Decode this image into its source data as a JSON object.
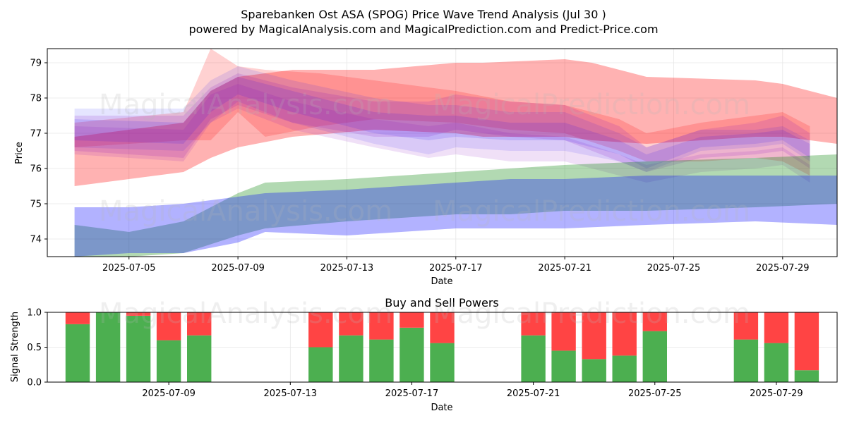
{
  "title_line1": "Sparebanken Ost ASA (SPOG) Price Wave Trend Analysis (Jul 30 )",
  "title_line2": "powered by MagicalAnalysis.com and MagicalPrediction.com and Predict-Price.com",
  "watermarks": [
    "MagicalAnalysis.com",
    "MagicalPrediction.com"
  ],
  "colors": {
    "red": "#ff0000",
    "blue": "#0000ff",
    "green": "#008000",
    "buy": "#4caf50",
    "sell": "#ff4444"
  },
  "chart_data": [
    {
      "type": "area",
      "title": "Price Wave Trend Analysis",
      "xlabel": "Date",
      "ylabel": "Price",
      "x_range": [
        "2025-07-02",
        "2025-07-31"
      ],
      "ylim": [
        73.5,
        79.4
      ],
      "xticks": [
        "2025-07-05",
        "2025-07-09",
        "2025-07-13",
        "2025-07-17",
        "2025-07-21",
        "2025-07-25",
        "2025-07-29"
      ],
      "yticks": [
        74,
        75,
        76,
        77,
        78,
        79
      ],
      "grid": true,
      "bands": [
        {
          "name": "red wide band",
          "color": "red",
          "opacity": 0.3,
          "x": [
            "2025-07-03",
            "2025-07-07",
            "2025-07-08",
            "2025-07-09",
            "2025-07-11",
            "2025-07-14",
            "2025-07-17",
            "2025-07-18",
            "2025-07-21",
            "2025-07-22",
            "2025-07-24",
            "2025-07-28",
            "2025-07-29",
            "2025-07-31"
          ],
          "upper": [
            76.9,
            77.3,
            78.2,
            78.6,
            78.8,
            78.8,
            79.0,
            79.0,
            79.1,
            79.0,
            78.6,
            78.5,
            78.4,
            78.0
          ],
          "lower": [
            75.5,
            75.9,
            76.3,
            76.6,
            76.9,
            77.1,
            77.0,
            76.9,
            76.9,
            76.8,
            76.7,
            76.9,
            76.9,
            76.7
          ]
        },
        {
          "name": "red spike band",
          "color": "red",
          "opacity": 0.18,
          "x": [
            "2025-07-03",
            "2025-07-07",
            "2025-07-08",
            "2025-07-09",
            "2025-07-10",
            "2025-07-12",
            "2025-07-14",
            "2025-07-17",
            "2025-07-19",
            "2025-07-21",
            "2025-07-23",
            "2025-07-24",
            "2025-07-26",
            "2025-07-28",
            "2025-07-29",
            "2025-07-30"
          ],
          "upper": [
            77.3,
            77.6,
            79.4,
            78.9,
            78.8,
            78.7,
            78.5,
            78.2,
            77.9,
            77.8,
            77.4,
            77.0,
            77.3,
            77.5,
            77.6,
            77.2
          ],
          "lower": [
            76.6,
            76.8,
            76.8,
            77.6,
            76.9,
            77.2,
            77.4,
            77.3,
            77.1,
            77.0,
            76.5,
            76.2,
            76.2,
            76.3,
            76.2,
            75.8
          ]
        },
        {
          "name": "blue band 1",
          "color": "blue",
          "opacity": 0.1,
          "x": [
            "2025-07-03",
            "2025-07-07",
            "2025-07-08",
            "2025-07-09",
            "2025-07-11",
            "2025-07-14",
            "2025-07-16",
            "2025-07-17",
            "2025-07-19",
            "2025-07-21",
            "2025-07-23",
            "2025-07-24",
            "2025-07-26",
            "2025-07-28",
            "2025-07-29",
            "2025-07-30"
          ],
          "upper": [
            77.7,
            77.7,
            78.5,
            78.9,
            78.5,
            78.0,
            77.8,
            77.8,
            77.6,
            77.6,
            77.0,
            76.6,
            77.1,
            77.1,
            77.2,
            76.8
          ],
          "lower": [
            76.6,
            76.5,
            77.3,
            77.9,
            77.3,
            76.7,
            76.4,
            76.6,
            76.5,
            76.5,
            76.2,
            75.9,
            76.5,
            76.6,
            76.7,
            76.2
          ]
        },
        {
          "name": "blue band 2",
          "color": "blue",
          "opacity": 0.12,
          "x": [
            "2025-07-03",
            "2025-07-07",
            "2025-07-08",
            "2025-07-09",
            "2025-07-11",
            "2025-07-14",
            "2025-07-16",
            "2025-07-17",
            "2025-07-19",
            "2025-07-21",
            "2025-07-23",
            "2025-07-24",
            "2025-07-26",
            "2025-07-28",
            "2025-07-29",
            "2025-07-30"
          ],
          "upper": [
            77.4,
            77.3,
            78.2,
            78.6,
            78.2,
            77.6,
            77.5,
            77.5,
            77.3,
            77.3,
            76.8,
            76.4,
            76.9,
            77.0,
            77.1,
            76.7
          ],
          "lower": [
            76.8,
            76.7,
            77.6,
            78.1,
            77.6,
            77.0,
            76.8,
            76.9,
            76.8,
            76.8,
            76.4,
            76.0,
            76.6,
            76.7,
            76.8,
            76.3
          ]
        },
        {
          "name": "purple band 1",
          "color": "purple",
          "opacity": 0.14,
          "x": [
            "2025-07-03",
            "2025-07-07",
            "2025-07-08",
            "2025-07-09",
            "2025-07-11",
            "2025-07-14",
            "2025-07-16",
            "2025-07-17",
            "2025-07-19",
            "2025-07-21",
            "2025-07-23",
            "2025-07-24",
            "2025-07-26",
            "2025-07-28",
            "2025-07-29",
            "2025-07-30"
          ],
          "upper": [
            77.5,
            77.5,
            78.3,
            78.7,
            78.3,
            77.9,
            77.9,
            78.1,
            77.9,
            77.8,
            77.2,
            76.6,
            77.1,
            77.3,
            77.5,
            77.0
          ],
          "lower": [
            76.5,
            76.3,
            77.4,
            77.8,
            77.3,
            76.9,
            76.9,
            77.1,
            76.9,
            76.8,
            76.2,
            75.9,
            76.3,
            76.4,
            76.5,
            76.0
          ]
        },
        {
          "name": "purple band 2",
          "color": "purple",
          "opacity": 0.12,
          "x": [
            "2025-07-03",
            "2025-07-07",
            "2025-07-08",
            "2025-07-09",
            "2025-07-11",
            "2025-07-14",
            "2025-07-16",
            "2025-07-17",
            "2025-07-19",
            "2025-07-21",
            "2025-07-23",
            "2025-07-24",
            "2025-07-26",
            "2025-07-28",
            "2025-07-29",
            "2025-07-30"
          ],
          "upper": [
            77.2,
            77.1,
            78.1,
            78.4,
            77.9,
            77.4,
            77.2,
            77.3,
            77.0,
            76.9,
            76.4,
            76.1,
            76.4,
            76.5,
            76.6,
            76.1
          ],
          "lower": [
            76.4,
            76.2,
            77.3,
            77.7,
            77.1,
            76.6,
            76.3,
            76.4,
            76.2,
            76.2,
            75.8,
            75.6,
            75.9,
            76.0,
            76.1,
            75.6
          ]
        },
        {
          "name": "green band",
          "color": "green",
          "opacity": 0.3,
          "x": [
            "2025-07-03",
            "2025-07-05",
            "2025-07-07",
            "2025-07-09",
            "2025-07-10",
            "2025-07-13",
            "2025-07-15",
            "2025-07-17",
            "2025-07-19",
            "2025-07-21",
            "2025-07-24",
            "2025-07-28",
            "2025-07-31"
          ],
          "upper": [
            74.4,
            74.2,
            74.5,
            75.3,
            75.6,
            75.7,
            75.8,
            75.9,
            76.0,
            76.1,
            76.2,
            76.3,
            76.4
          ],
          "lower": [
            73.5,
            73.5,
            73.6,
            74.1,
            74.3,
            74.5,
            74.6,
            74.7,
            74.7,
            74.8,
            74.8,
            74.9,
            75.0
          ]
        },
        {
          "name": "blue lower band",
          "color": "blue",
          "opacity": 0.3,
          "x": [
            "2025-07-03",
            "2025-07-05",
            "2025-07-07",
            "2025-07-09",
            "2025-07-10",
            "2025-07-13",
            "2025-07-15",
            "2025-07-17",
            "2025-07-19",
            "2025-07-21",
            "2025-07-24",
            "2025-07-28",
            "2025-07-31"
          ],
          "upper": [
            74.9,
            74.9,
            75.0,
            75.2,
            75.3,
            75.4,
            75.5,
            75.6,
            75.7,
            75.7,
            75.8,
            75.8,
            75.8
          ],
          "lower": [
            73.5,
            73.6,
            73.6,
            73.9,
            74.2,
            74.1,
            74.2,
            74.3,
            74.3,
            74.3,
            74.4,
            74.5,
            74.4
          ]
        }
      ]
    },
    {
      "type": "bar",
      "title": "Buy and Sell Powers",
      "xlabel": "Date",
      "ylabel": "Signal Strength",
      "x_range": [
        "2025-07-05",
        "2025-07-31"
      ],
      "ylim": [
        0,
        1
      ],
      "xticks": [
        "2025-07-09",
        "2025-07-13",
        "2025-07-17",
        "2025-07-21",
        "2025-07-25",
        "2025-07-29"
      ],
      "yticks": [
        "0.0",
        "0.5",
        "1.0"
      ],
      "grid": true,
      "series": [
        {
          "name": "Buy",
          "color": "buy",
          "dates": [
            "2025-07-06",
            "2025-07-07",
            "2025-07-08",
            "2025-07-09",
            "2025-07-10",
            "2025-07-14",
            "2025-07-15",
            "2025-07-16",
            "2025-07-17",
            "2025-07-18",
            "2025-07-21",
            "2025-07-22",
            "2025-07-23",
            "2025-07-24",
            "2025-07-25",
            "2025-07-28",
            "2025-07-29",
            "2025-07-30"
          ],
          "values": [
            0.83,
            1.0,
            0.95,
            0.6,
            0.67,
            0.5,
            0.67,
            0.61,
            0.78,
            0.56,
            0.67,
            0.45,
            0.33,
            0.38,
            0.73,
            0.61,
            0.56,
            0.17
          ]
        },
        {
          "name": "Sell",
          "color": "sell",
          "dates": [
            "2025-07-06",
            "2025-07-07",
            "2025-07-08",
            "2025-07-09",
            "2025-07-10",
            "2025-07-14",
            "2025-07-15",
            "2025-07-16",
            "2025-07-17",
            "2025-07-18",
            "2025-07-21",
            "2025-07-22",
            "2025-07-23",
            "2025-07-24",
            "2025-07-25",
            "2025-07-28",
            "2025-07-29",
            "2025-07-30"
          ],
          "values": [
            0.17,
            0.0,
            0.05,
            0.4,
            0.33,
            0.5,
            0.33,
            0.39,
            0.22,
            0.44,
            0.33,
            0.55,
            0.67,
            0.62,
            0.27,
            0.39,
            0.44,
            0.83
          ]
        }
      ]
    }
  ]
}
